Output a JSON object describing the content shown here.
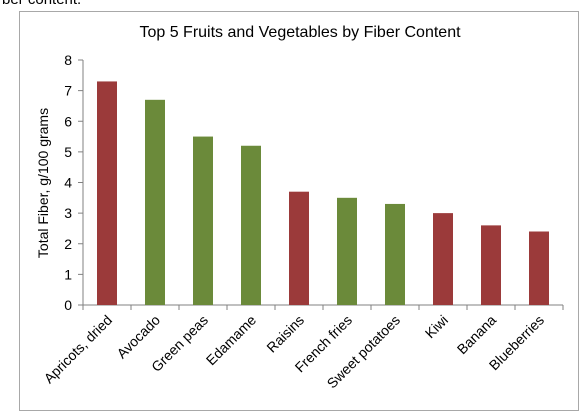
{
  "page_header_fragment": "ber content.",
  "chart_data": {
    "type": "bar",
    "title": "Top 5 Fruits and Vegetables by Fiber Content",
    "xlabel": "",
    "ylabel": "Total Fiber, g/100 grams",
    "ylim": [
      0,
      8
    ],
    "yticks": [
      "0",
      "1",
      "2",
      "3",
      "4",
      "5",
      "6",
      "7",
      "8"
    ],
    "grid": false,
    "categories": [
      "Apricots, dried",
      "Avocado",
      "Green peas",
      "Edamame",
      "Raisins",
      "French fries",
      "Sweet potatoes",
      "Kiwi",
      "Banana",
      "Blueberries"
    ],
    "values": [
      7.3,
      6.7,
      5.5,
      5.2,
      3.7,
      3.5,
      3.3,
      3.0,
      2.6,
      2.4
    ],
    "bar_colors": [
      "#9b3a3a",
      "#6b8a3a",
      "#6b8a3a",
      "#6b8a3a",
      "#9b3a3a",
      "#6b8a3a",
      "#6b8a3a",
      "#9b3a3a",
      "#9b3a3a",
      "#9b3a3a"
    ],
    "colors": {
      "fruit": "#9b3a3a",
      "vegetable": "#6b8a3a",
      "axis": "#808080"
    }
  }
}
